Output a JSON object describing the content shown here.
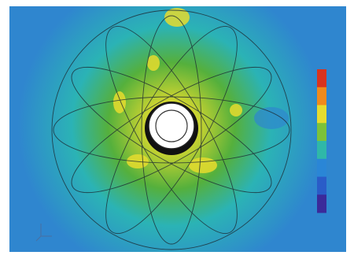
{
  "field": {
    "colors": {
      "outer": "#2f86cf",
      "mid": "#2bb3b5",
      "ring": "#55b03c",
      "hot": "#e6dc2e"
    }
  },
  "colorbar": {
    "colors": [
      "#d9331e",
      "#f08a1c",
      "#e6dc2e",
      "#7cc23a",
      "#2fb8a8",
      "#2a86d6",
      "#2a5cc8",
      "#3b2a9a"
    ]
  }
}
